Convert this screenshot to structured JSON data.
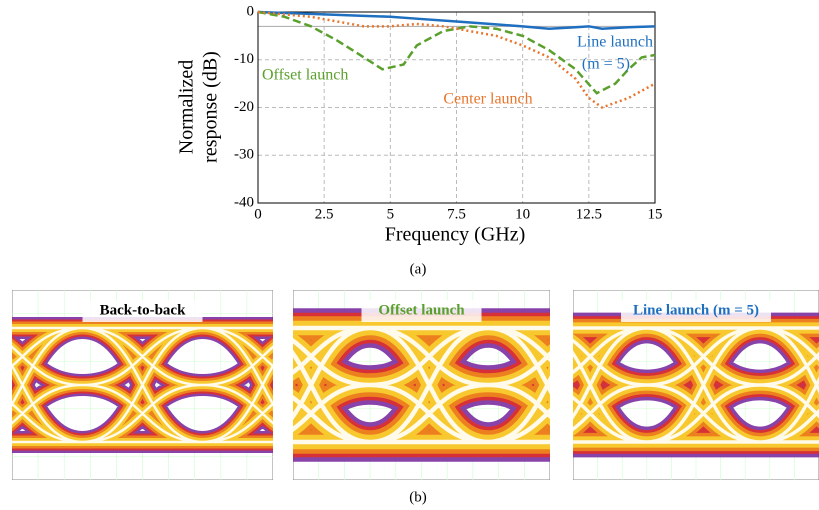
{
  "chart_data": {
    "type": "line",
    "ylabel_lines": [
      "Normalized",
      "response (dB)"
    ],
    "xlabel": "Frequency (GHz)",
    "xlim": [
      0,
      15
    ],
    "xticks": [
      0,
      2.5,
      5,
      7.5,
      10,
      12.5,
      15
    ],
    "ylim": [
      -40,
      0
    ],
    "yticks": [
      -40,
      -30,
      -20,
      -10,
      0
    ],
    "grid": true,
    "reference_line": -3,
    "series": [
      {
        "name": "Line launch",
        "color": "#1f6fc0",
        "style": "solid",
        "x": [
          0,
          1,
          2,
          2.5,
          4,
          5,
          6,
          7.5,
          9,
          10,
          11,
          12,
          12.5,
          13,
          14,
          15
        ],
        "values": [
          0,
          -0.2,
          -0.4,
          -0.5,
          -0.8,
          -1,
          -1.4,
          -2,
          -2.6,
          -3,
          -3.5,
          -3.2,
          -3,
          -3.5,
          -3.2,
          -3
        ]
      },
      {
        "name": "Offset launch",
        "color": "#5aa02c",
        "style": "dashed",
        "x": [
          0,
          1,
          2,
          3,
          4,
          4.7,
          5.5,
          6,
          7,
          8,
          9,
          10,
          11,
          12,
          12.8,
          13.5,
          14,
          14.5,
          15
        ],
        "values": [
          0,
          -1,
          -3,
          -6,
          -9.5,
          -12,
          -11,
          -7,
          -4,
          -3,
          -3.5,
          -5,
          -8,
          -12,
          -17,
          -15,
          -12,
          -9.5,
          -9
        ]
      },
      {
        "name": "Center launch",
        "color": "#e8762c",
        "style": "dotted",
        "x": [
          0,
          1,
          2,
          3,
          4,
          5,
          6,
          7,
          8,
          9,
          10,
          11,
          12,
          12.5,
          13,
          13.5,
          14,
          15
        ],
        "values": [
          0,
          -0.5,
          -1,
          -2,
          -3,
          -3,
          -2.5,
          -3,
          -4,
          -5,
          -7,
          -9.5,
          -14,
          -18,
          -20,
          -19,
          -18,
          -15
        ]
      }
    ],
    "annotations": [
      "(m = 5)"
    ]
  },
  "captions": [
    "(a)",
    "(b)"
  ],
  "eye_panels": [
    {
      "label": "Back-to-back",
      "color": "#000000"
    },
    {
      "label": "Offset launch",
      "color": "#5aa02c"
    },
    {
      "label": "Line launch (m = 5)",
      "color": "#1f6fc0"
    }
  ]
}
